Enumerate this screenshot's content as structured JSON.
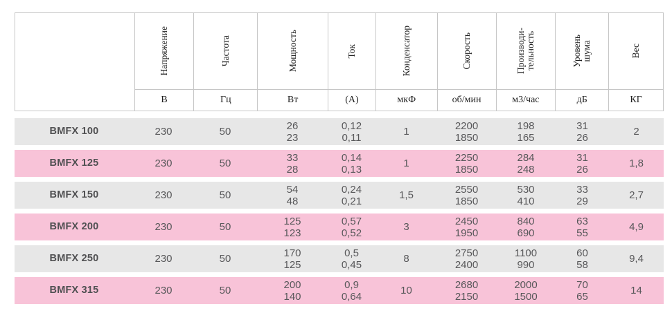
{
  "table": {
    "columns": [
      {
        "key": "voltage",
        "label": "Напряжение",
        "unit": "В"
      },
      {
        "key": "frequency",
        "label": "Частота",
        "unit": "Гц"
      },
      {
        "key": "power",
        "label": "Мощность",
        "unit": "Вт"
      },
      {
        "key": "current",
        "label": "Ток",
        "unit": "(А)"
      },
      {
        "key": "capacitor",
        "label": "Конденсатор",
        "unit": "мкФ"
      },
      {
        "key": "speed",
        "label": "Скорость",
        "unit": "об/мин"
      },
      {
        "key": "airflow",
        "label": "Производи-\nтельность",
        "unit": "м3/час"
      },
      {
        "key": "noise",
        "label": "Уровень\nшума",
        "unit": "дБ"
      },
      {
        "key": "weight",
        "label": "Вес",
        "unit": "КГ"
      }
    ],
    "rows": [
      {
        "model": "BMFX 100",
        "highlight": false,
        "values": [
          "230",
          "50",
          "26\n23",
          "0,12\n0,11",
          "1",
          "2200\n1850",
          "198\n165",
          "31\n26",
          "2"
        ]
      },
      {
        "model": "BMFX 125",
        "highlight": true,
        "values": [
          "230",
          "50",
          "33\n28",
          "0,14\n0,13",
          "1",
          "2250\n1850",
          "284\n248",
          "31\n26",
          "1,8"
        ]
      },
      {
        "model": "BMFX 150",
        "highlight": false,
        "values": [
          "230",
          "50",
          "54\n48",
          "0,24\n0,21",
          "1,5",
          "2550\n1850",
          "530\n410",
          "33\n29",
          "2,7"
        ]
      },
      {
        "model": "BMFX 200",
        "highlight": true,
        "values": [
          "230",
          "50",
          "125\n123",
          "0,57\n0,52",
          "3",
          "2450\n1950",
          "840\n690",
          "63\n55",
          "4,9"
        ]
      },
      {
        "model": "BMFX 250",
        "highlight": false,
        "values": [
          "230",
          "50",
          "170\n125",
          "0,5\n0,45",
          "8",
          "2750\n2400",
          "1100\n990",
          "60\n58",
          "9,4"
        ]
      },
      {
        "model": "BMFX 315",
        "highlight": true,
        "values": [
          "230",
          "50",
          "200\n140",
          "0,9\n0,64",
          "10",
          "2680\n2150",
          "2000\n1500",
          "70\n65",
          "14"
        ]
      }
    ]
  },
  "colors": {
    "normal_row": "#e7e7e7",
    "highlight_row": "#f8c3d8",
    "header_border": "#c6c6c6",
    "data_text": "#58585a",
    "header_text": "#1f1f1f"
  }
}
